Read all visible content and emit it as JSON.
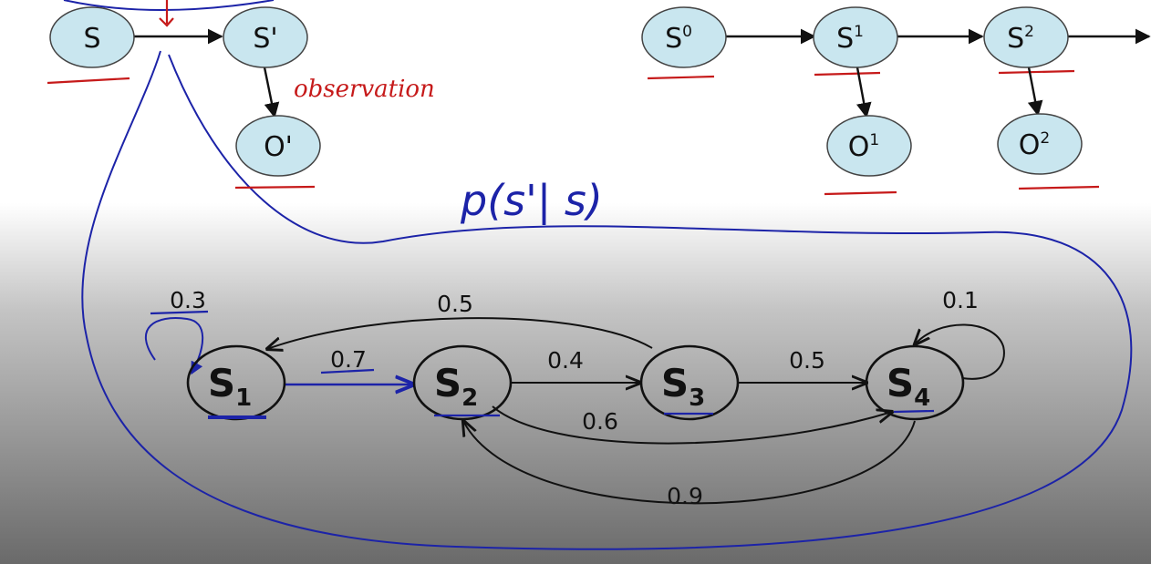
{
  "left_model": {
    "state": "S",
    "next_state": "S'",
    "observation_node": "O'",
    "annotation": "observation"
  },
  "right_model": {
    "states": [
      {
        "base": "S",
        "sup": "0"
      },
      {
        "base": "S",
        "sup": "1"
      },
      {
        "base": "S",
        "sup": "2"
      }
    ],
    "observations": [
      {
        "base": "O",
        "sup": "1"
      },
      {
        "base": "O",
        "sup": "2"
      }
    ]
  },
  "transition_formula": "p(s'| s)",
  "markov_chain": {
    "states": [
      {
        "base": "S",
        "sub": "1"
      },
      {
        "base": "S",
        "sub": "2"
      },
      {
        "base": "S",
        "sub": "3"
      },
      {
        "base": "S",
        "sub": "4"
      }
    ],
    "edges": [
      {
        "from": "S1",
        "to": "S1",
        "label": "0.3"
      },
      {
        "from": "S1",
        "to": "S2",
        "label": "0.7"
      },
      {
        "from": "S3",
        "to": "S1",
        "label": "0.5"
      },
      {
        "from": "S2",
        "to": "S3",
        "label": "0.4"
      },
      {
        "from": "S3",
        "to": "S4",
        "label": "0.5"
      },
      {
        "from": "S2",
        "to": "S4",
        "label": "0.6"
      },
      {
        "from": "S4",
        "to": "S2",
        "label": "0.9"
      },
      {
        "from": "S4",
        "to": "S4",
        "label": "0.1"
      }
    ]
  },
  "colors": {
    "node_fill": "#c9e6ef",
    "annotation_red": "#c61a1a",
    "annotation_blue": "#1c23a8",
    "gradient_top": "#ffffff",
    "gradient_bottom": "#6a6a6a"
  }
}
